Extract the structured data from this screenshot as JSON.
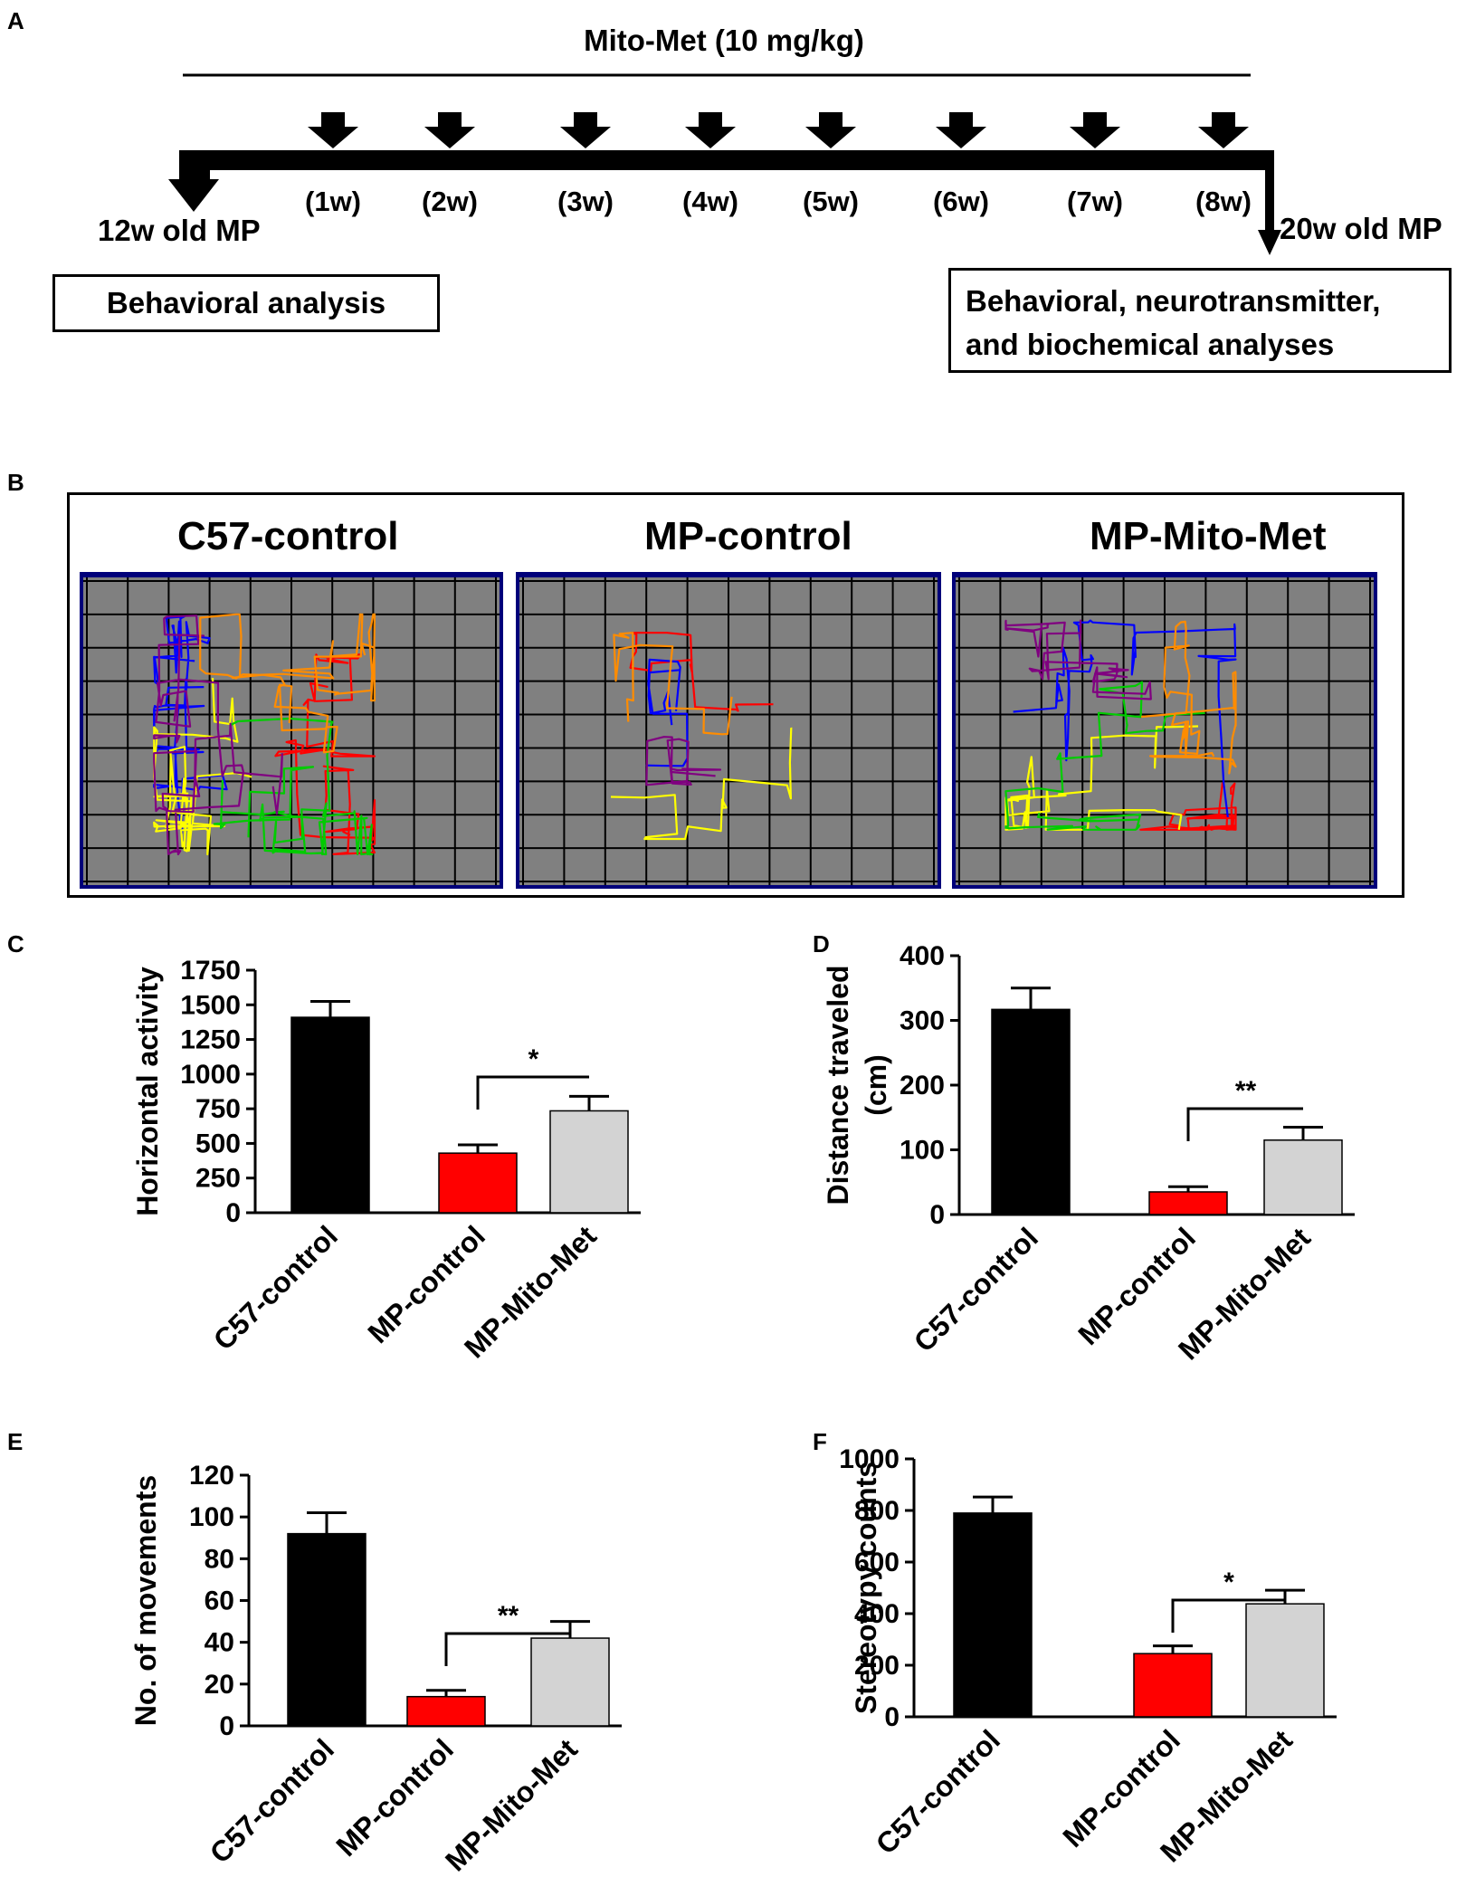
{
  "panel_labels": {
    "a": "A",
    "b": "B",
    "c": "C",
    "d": "D",
    "e": "E",
    "f": "F"
  },
  "timeline": {
    "treatment": "Mito-Met (10 mg/kg)",
    "weeks": [
      "(1w)",
      "(2w)",
      "(3w)",
      "(4w)",
      "(5w)",
      "(6w)",
      "(7w)",
      "(8w)"
    ],
    "start_label": "12w old MP",
    "end_label": "20w old MP",
    "start_box": "Behavioral analysis",
    "end_box_line1": "Behavioral, neurotransmitter,",
    "end_box_line2": "and biochemical analyses"
  },
  "tracking": {
    "titles": [
      "C57-control",
      "MP-control",
      "MP-Mito-Met"
    ],
    "colors": {
      "floor": "#808080",
      "grid": "#000000",
      "frame": "#00007a",
      "paths": [
        "#ff0000",
        "#0000ff",
        "#ffff00",
        "#00cc00",
        "#800080",
        "#ff8c00"
      ]
    }
  },
  "colors": {
    "c57": "#000000",
    "mp_control": "#ff0000",
    "mp_mito": "#d3d3d3"
  },
  "chart_data": [
    {
      "id": "C",
      "type": "bar",
      "ylabel": "Horizontal activity",
      "ylim": [
        0,
        1750
      ],
      "yticks": [
        "0",
        "250",
        "500",
        "750",
        "1000",
        "1250",
        "1500",
        "1750"
      ],
      "categories": [
        "C57-control",
        "MP-control",
        "MP-Mito-Met"
      ],
      "values": [
        1410,
        430,
        735
      ],
      "errors": [
        115,
        60,
        105
      ],
      "significance": {
        "between": [
          "MP-control",
          "MP-Mito-Met"
        ],
        "label": "*"
      }
    },
    {
      "id": "D",
      "type": "bar",
      "ylabel": "Distance traveled (cm)",
      "ylim": [
        0,
        400
      ],
      "yticks": [
        "0",
        "100",
        "200",
        "300",
        "400"
      ],
      "categories": [
        "C57-control",
        "MP-control",
        "MP-Mito-Met"
      ],
      "values": [
        317,
        35,
        115
      ],
      "errors": [
        33,
        8,
        20
      ],
      "significance": {
        "between": [
          "MP-control",
          "MP-Mito-Met"
        ],
        "label": "**"
      }
    },
    {
      "id": "E",
      "type": "bar",
      "ylabel": "No. of movements",
      "ylim": [
        0,
        120
      ],
      "yticks": [
        "0",
        "20",
        "40",
        "60",
        "80",
        "100",
        "120"
      ],
      "categories": [
        "C57-control",
        "MP-control",
        "MP-Mito-Met"
      ],
      "values": [
        92,
        14,
        42
      ],
      "errors": [
        10,
        3,
        8
      ],
      "significance": {
        "between": [
          "MP-control",
          "MP-Mito-Met"
        ],
        "label": "**"
      }
    },
    {
      "id": "F",
      "type": "bar",
      "ylabel": "Stereotypy counts",
      "ylim": [
        0,
        1000
      ],
      "yticks": [
        "0",
        "200",
        "400",
        "600",
        "800",
        "1000"
      ],
      "categories": [
        "C57-control",
        "MP-control",
        "MP-Mito-Met"
      ],
      "values": [
        790,
        245,
        438
      ],
      "errors": [
        62,
        30,
        53
      ],
      "significance": {
        "between": [
          "MP-control",
          "MP-Mito-Met"
        ],
        "label": "*"
      }
    }
  ]
}
